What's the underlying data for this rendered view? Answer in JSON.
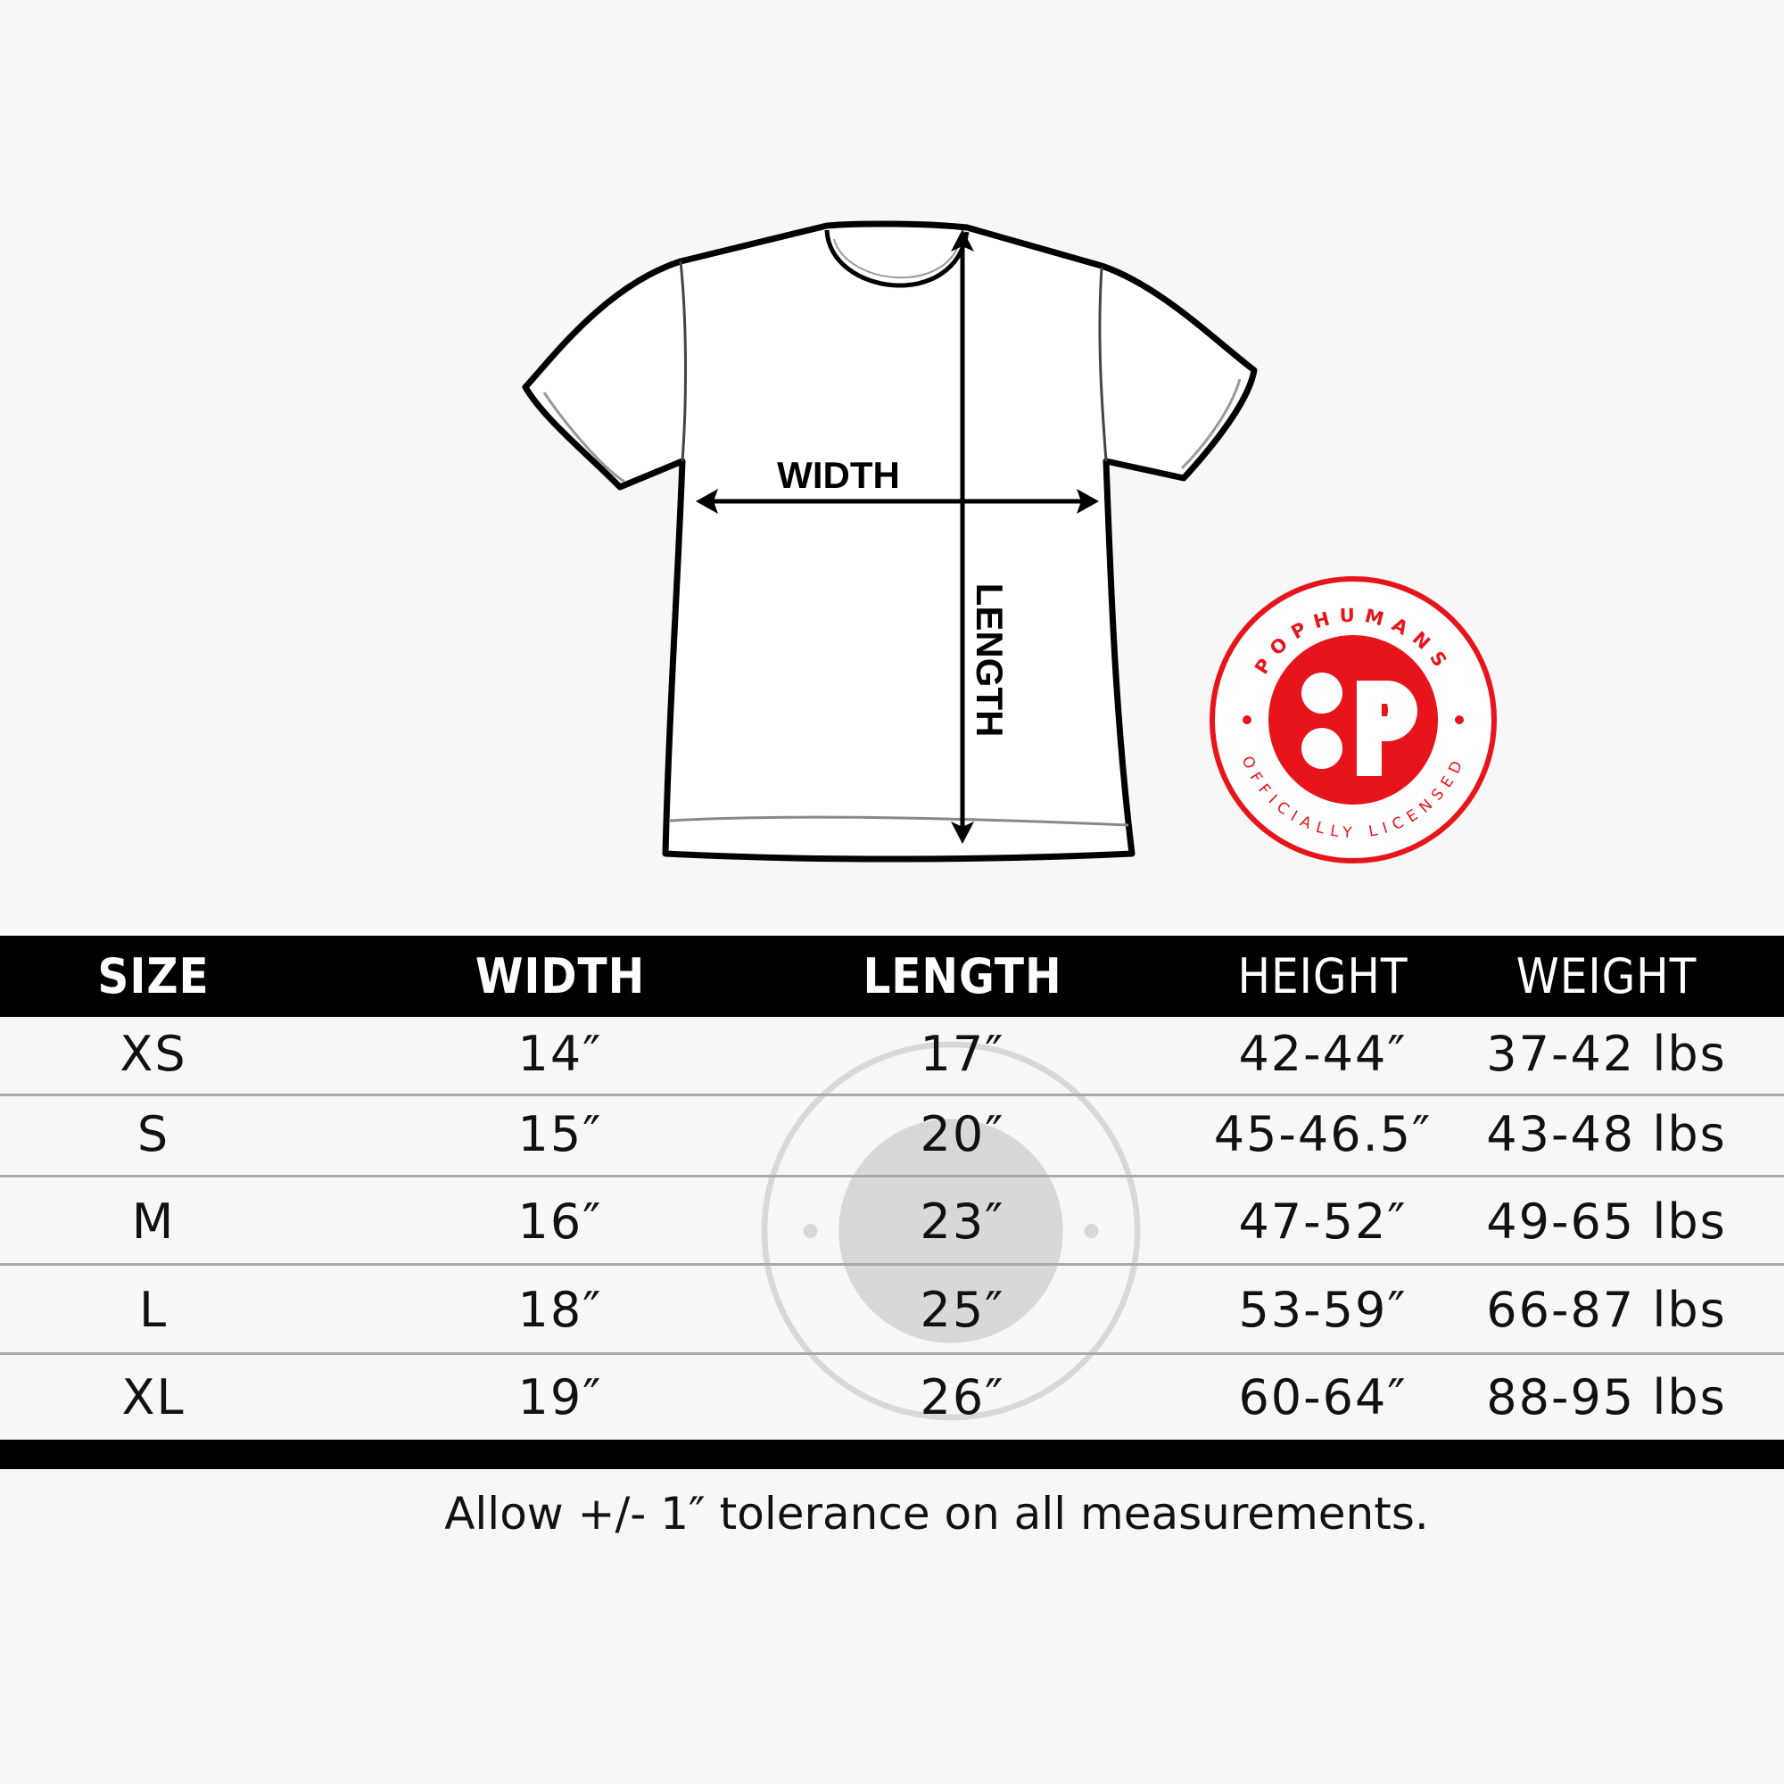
{
  "diagram": {
    "width_label": "WIDTH",
    "length_label": "LENGTH"
  },
  "logo": {
    "top_text": "POPHUMANS",
    "bottom_text": "OFFICIALLY LICENSED",
    "mark": "P",
    "color": "#e8141b"
  },
  "table": {
    "headers": [
      "SIZE",
      "WIDTH",
      "LENGTH",
      "HEIGHT",
      "WEIGHT"
    ],
    "rows": [
      [
        "XS",
        "14″",
        "17″",
        "42-44″",
        "37-42 lbs"
      ],
      [
        "S",
        "15″",
        "20″",
        "45-46.5″",
        "43-48 lbs"
      ],
      [
        "M",
        "16″",
        "23″",
        "47-52″",
        "49-65 lbs"
      ],
      [
        "L",
        "18″",
        "25″",
        "53-59″",
        "66-87 lbs"
      ],
      [
        "XL",
        "19″",
        "26″",
        "60-64″",
        "88-95 lbs"
      ]
    ]
  },
  "footer": {
    "note": "Allow +/- 1″ tolerance on all measurements."
  }
}
